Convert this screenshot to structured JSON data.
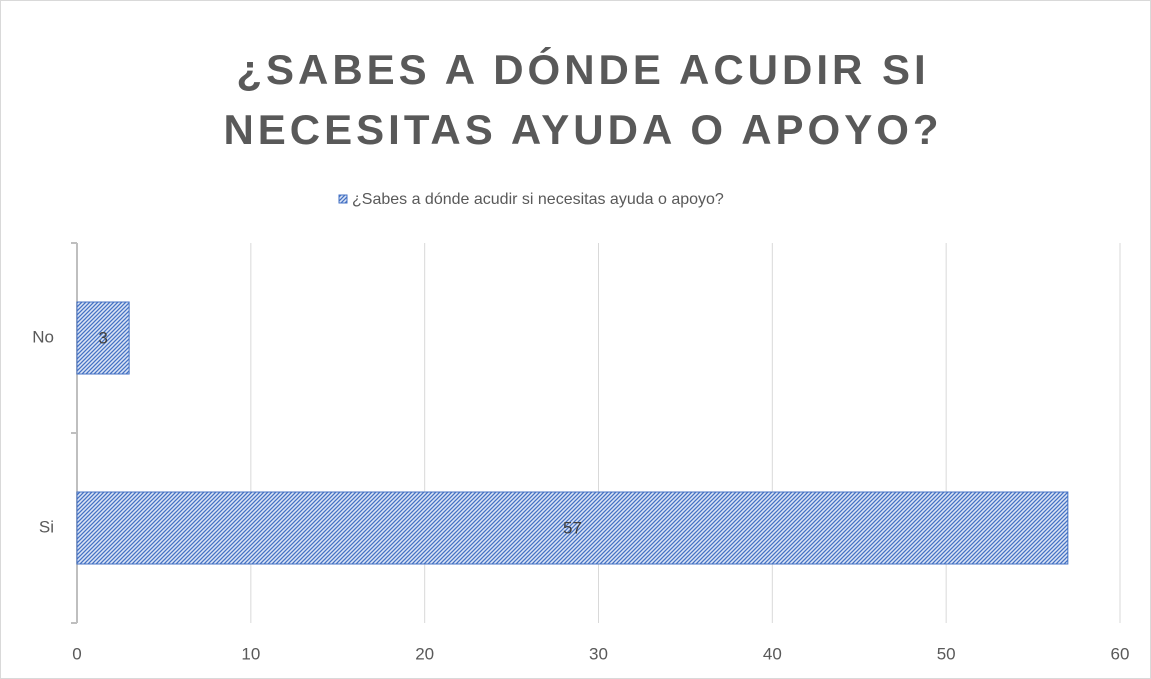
{
  "chart_data": {
    "type": "bar",
    "orientation": "horizontal",
    "title": "¿SABES A DÓNDE ACUDIR SI NECESITAS AYUDA O APOYO?",
    "categories": [
      "No",
      "Si"
    ],
    "series": [
      {
        "name": "¿Sabes a dónde acudir si necesitas ayuda o apoyo?",
        "color": "#4472c4",
        "values": [
          3,
          57
        ]
      }
    ],
    "xlim": [
      0,
      60
    ],
    "xticks": [
      0,
      10,
      20,
      30,
      40,
      50,
      60
    ],
    "grid": true,
    "legend": "top"
  }
}
